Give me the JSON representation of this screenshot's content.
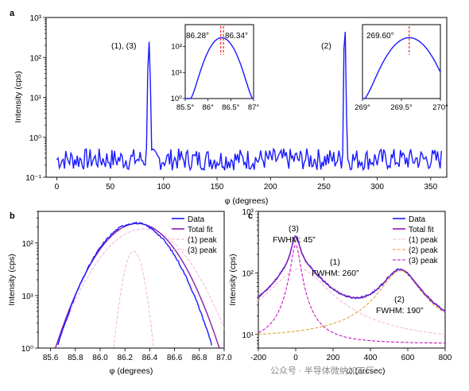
{
  "panels": {
    "a": {
      "label": "a",
      "type": "line",
      "xlabel": "φ (degrees)",
      "ylabel": "Intensity (cps)",
      "xlim": [
        -10,
        365
      ],
      "ylim": [
        0.1,
        1000
      ],
      "yscale": "log",
      "xticks": [
        "0",
        "50",
        "100",
        "150",
        "200",
        "250",
        "300",
        "350"
      ],
      "yticks": [
        "10⁻¹",
        "10⁰",
        "10¹",
        "10²",
        "10³"
      ],
      "peaks": [
        {
          "label": "(1), (3)",
          "x": 86.3,
          "y": 250
        },
        {
          "label": "(2)",
          "x": 269.6,
          "y": 600
        }
      ],
      "color": "#1a1aff",
      "inset1": {
        "xticks": [
          "85.5°",
          "86°",
          "86.5°",
          "87°"
        ],
        "yticks": [
          "10⁰",
          "10¹",
          "10²"
        ],
        "xlim": [
          85.5,
          87.0
        ],
        "ylim": [
          1,
          700
        ],
        "annotations": [
          "86.28°",
          "86.34°"
        ],
        "markers": [
          86.28,
          86.34
        ],
        "marker_color": "#ff2020"
      },
      "inset2": {
        "xticks": [
          "269°",
          "269.5°",
          "270°"
        ],
        "xlim": [
          269.0,
          270.0
        ],
        "ylim": [
          1,
          700
        ],
        "annotations": [
          "269.60°"
        ],
        "markers": [
          269.6
        ],
        "marker_color": "#ff2020"
      }
    },
    "b": {
      "label": "b",
      "type": "line",
      "xlabel": "φ (degrees)",
      "ylabel": "Intensity (cps)",
      "xlim": [
        85.5,
        87.0
      ],
      "ylim": [
        1,
        400
      ],
      "yscale": "log",
      "xticks": [
        "85.6",
        "85.8",
        "86.0",
        "86.2",
        "86.4",
        "86.6",
        "86.8",
        "87.0"
      ],
      "yticks": [
        "10⁰",
        "10¹",
        "10²"
      ],
      "legend": [
        "Data",
        "Total fit",
        "(1) peak",
        "(3) peak"
      ],
      "series": [
        {
          "name": "Data",
          "color": "#1a1aff",
          "center": 86.28,
          "amp": 240,
          "sigma": 0.19
        },
        {
          "name": "Total fit",
          "color": "#8a1ab0",
          "center": 86.3,
          "amp": 235,
          "sigma": 0.2
        },
        {
          "name": "(1) peak",
          "color": "#f4b4d8",
          "center": 86.35,
          "amp": 185,
          "sigma": 0.22
        },
        {
          "name": "(3) peak",
          "color": "#f4b4d8",
          "center": 86.27,
          "amp": 70,
          "sigma": 0.055
        }
      ]
    },
    "c": {
      "label": "c",
      "type": "line",
      "xlabel": "ω (arcsec)",
      "ylabel": "Intensity (cps)",
      "xlim": [
        -200,
        800
      ],
      "ylim": [
        6,
        1000
      ],
      "yscale": "log",
      "xticks": [
        "-200",
        "0",
        "200",
        "400",
        "600",
        "800"
      ],
      "yticks": [
        "10¹",
        "10²",
        "10³"
      ],
      "legend": [
        "Data",
        "Total fit",
        "(1) peak",
        "(2) peak",
        "(3) peak"
      ],
      "annotations": [
        {
          "text": "(3)",
          "sub": "FWHM: 45”"
        },
        {
          "text": "(1)",
          "sub": "FWHM: 260”"
        },
        {
          "text": "(2)",
          "sub": "FWHM: 190”"
        }
      ],
      "series": [
        {
          "name": "Data",
          "color": "#1a1aff"
        },
        {
          "name": "Total fit",
          "color": "#8a1ab0"
        },
        {
          "name": "(1) peak",
          "color": "#f4b4d8",
          "center": 20,
          "amp": 110,
          "hwhm": 130
        },
        {
          "name": "(2) peak",
          "color": "#e0a020",
          "center": 560,
          "amp": 100,
          "hwhm": 95
        },
        {
          "name": "(3) peak",
          "color": "#c000c0",
          "center": 0,
          "amp": 280,
          "hwhm": 23
        }
      ],
      "baseline": 7
    }
  },
  "watermark": "公众号 · 半导体微纳加工厂"
}
